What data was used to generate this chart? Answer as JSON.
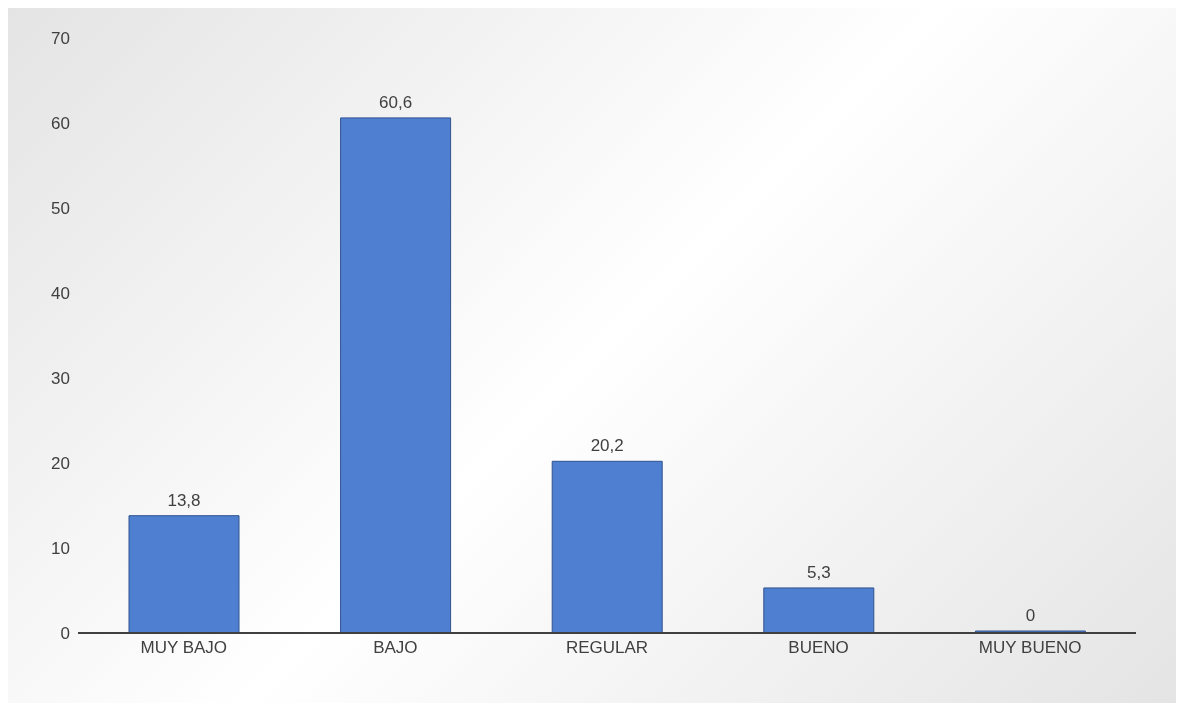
{
  "chart_data": {
    "type": "bar",
    "categories": [
      "MUY BAJO",
      "BAJO",
      "REGULAR",
      "BUENO",
      "MUY BUENO"
    ],
    "values": [
      13.8,
      60.6,
      20.2,
      5.3,
      0
    ],
    "value_labels": [
      "13,8",
      "60,6",
      "20,2",
      "5,3",
      "0"
    ],
    "color": "#4f7fd0",
    "ylim": [
      0,
      70
    ],
    "yticks": [
      0,
      10,
      20,
      30,
      40,
      50,
      60,
      70
    ],
    "grid": false,
    "legend": false
  }
}
